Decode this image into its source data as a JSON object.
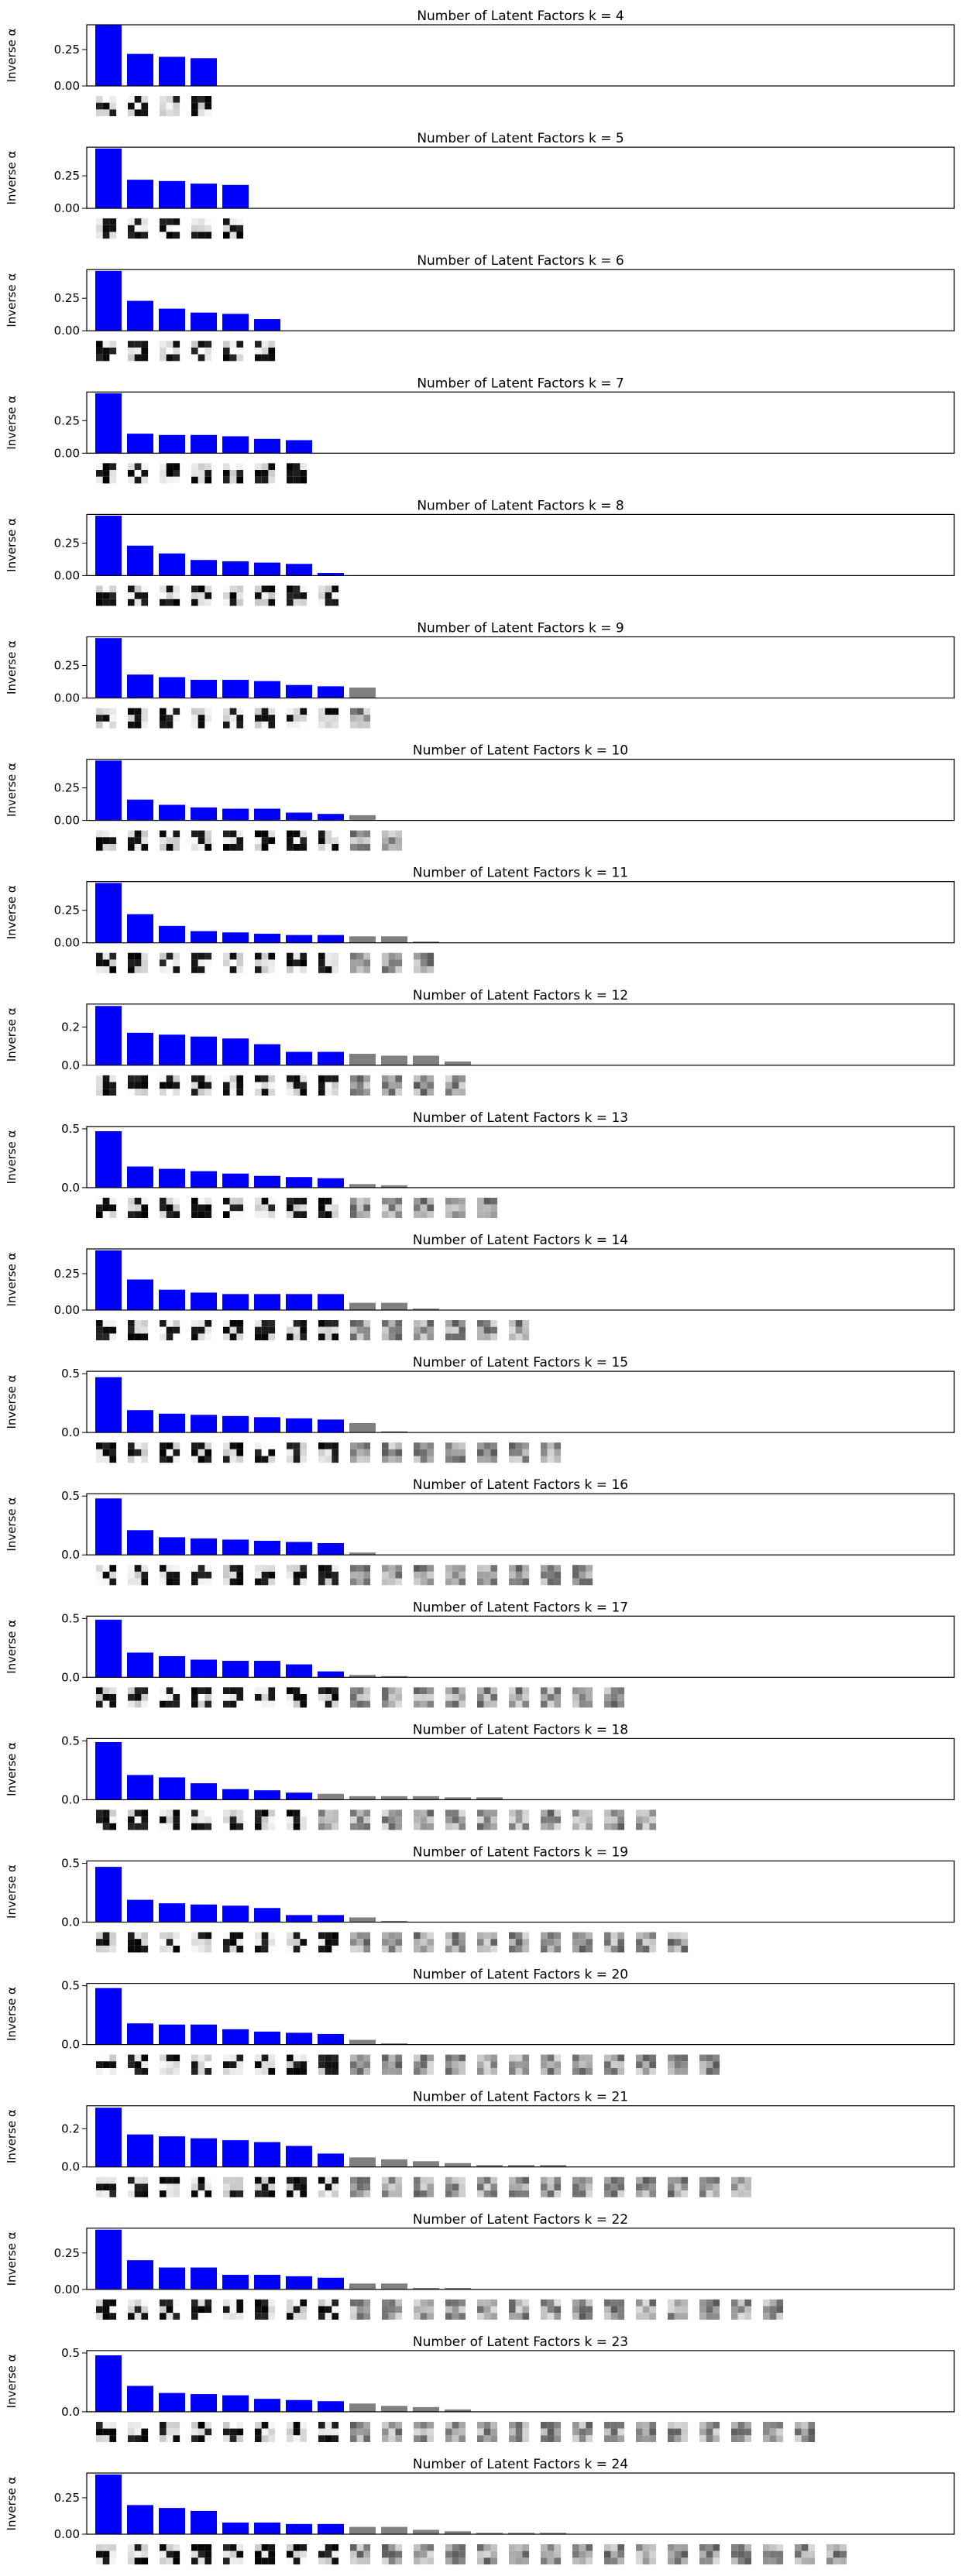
{
  "figure": {
    "ylabel": "Inverse α",
    "colors": {
      "active": "#0000ff",
      "pruned": "#808080",
      "axis": "#000000",
      "background": "#ffffff"
    }
  },
  "chart_data": [
    {
      "type": "bar",
      "title": "Number of Latent Factors k = 4",
      "k": 4,
      "ylabel": "Inverse α",
      "ylim": [
        0,
        0.42
      ],
      "yticks": [
        0.0,
        0.25
      ],
      "values": [
        0.42,
        0.22,
        0.2,
        0.19
      ],
      "active": [
        true,
        true,
        true,
        true
      ]
    },
    {
      "type": "bar",
      "title": "Number of Latent Factors k = 5",
      "k": 5,
      "ylabel": "Inverse α",
      "ylim": [
        0,
        0.47
      ],
      "yticks": [
        0.0,
        0.25
      ],
      "values": [
        0.46,
        0.22,
        0.21,
        0.19,
        0.18
      ],
      "active": [
        true,
        true,
        true,
        true,
        true
      ]
    },
    {
      "type": "bar",
      "title": "Number of Latent Factors k = 6",
      "k": 6,
      "ylabel": "Inverse α",
      "ylim": [
        0,
        0.47
      ],
      "yticks": [
        0.0,
        0.25
      ],
      "values": [
        0.46,
        0.23,
        0.17,
        0.14,
        0.13,
        0.09
      ],
      "active": [
        true,
        true,
        true,
        true,
        true,
        true
      ]
    },
    {
      "type": "bar",
      "title": "Number of Latent Factors k = 7",
      "k": 7,
      "ylabel": "Inverse α",
      "ylim": [
        0,
        0.47
      ],
      "yticks": [
        0.0,
        0.25
      ],
      "values": [
        0.46,
        0.15,
        0.14,
        0.14,
        0.13,
        0.11,
        0.1
      ],
      "active": [
        true,
        true,
        true,
        true,
        true,
        true,
        true
      ]
    },
    {
      "type": "bar",
      "title": "Number of Latent Factors k = 8",
      "k": 8,
      "ylabel": "Inverse α",
      "ylim": [
        0,
        0.47
      ],
      "yticks": [
        0.0,
        0.25
      ],
      "values": [
        0.46,
        0.23,
        0.17,
        0.12,
        0.11,
        0.1,
        0.09,
        0.02
      ],
      "active": [
        true,
        true,
        true,
        true,
        true,
        true,
        true,
        true
      ]
    },
    {
      "type": "bar",
      "title": "Number of Latent Factors k = 9",
      "k": 9,
      "ylabel": "Inverse α",
      "ylim": [
        0,
        0.47
      ],
      "yticks": [
        0.0,
        0.25
      ],
      "values": [
        0.46,
        0.18,
        0.16,
        0.14,
        0.14,
        0.13,
        0.1,
        0.09,
        0.08
      ],
      "active": [
        true,
        true,
        true,
        true,
        true,
        true,
        true,
        true,
        false
      ]
    },
    {
      "type": "bar",
      "title": "Number of Latent Factors k = 10",
      "k": 10,
      "ylabel": "Inverse α",
      "ylim": [
        0,
        0.47
      ],
      "yticks": [
        0.0,
        0.25
      ],
      "values": [
        0.46,
        0.16,
        0.12,
        0.1,
        0.09,
        0.09,
        0.06,
        0.05,
        0.04,
        0.0
      ],
      "active": [
        true,
        true,
        true,
        true,
        true,
        true,
        true,
        true,
        false,
        false
      ]
    },
    {
      "type": "bar",
      "title": "Number of Latent Factors k = 11",
      "k": 11,
      "ylabel": "Inverse α",
      "ylim": [
        0,
        0.47
      ],
      "yticks": [
        0.0,
        0.25
      ],
      "values": [
        0.46,
        0.22,
        0.13,
        0.09,
        0.08,
        0.07,
        0.06,
        0.06,
        0.05,
        0.05,
        0.01
      ],
      "active": [
        true,
        true,
        true,
        true,
        true,
        true,
        true,
        true,
        false,
        false,
        false
      ]
    },
    {
      "type": "bar",
      "title": "Number of Latent Factors k = 12",
      "k": 12,
      "ylabel": "Inverse α",
      "ylim": [
        0,
        0.32
      ],
      "yticks": [
        0.0,
        0.2
      ],
      "values": [
        0.31,
        0.17,
        0.16,
        0.15,
        0.14,
        0.11,
        0.07,
        0.07,
        0.06,
        0.05,
        0.05,
        0.02
      ],
      "active": [
        true,
        true,
        true,
        true,
        true,
        true,
        true,
        true,
        false,
        false,
        false,
        false
      ]
    },
    {
      "type": "bar",
      "title": "Number of Latent Factors k = 13",
      "k": 13,
      "ylabel": "Inverse α",
      "ylim": [
        0,
        0.52
      ],
      "yticks": [
        0.0,
        0.5
      ],
      "values": [
        0.48,
        0.18,
        0.16,
        0.14,
        0.12,
        0.1,
        0.09,
        0.08,
        0.03,
        0.02,
        0.0,
        0.0,
        0.0
      ],
      "active": [
        true,
        true,
        true,
        true,
        true,
        true,
        true,
        true,
        false,
        false,
        false,
        false,
        false
      ]
    },
    {
      "type": "bar",
      "title": "Number of Latent Factors k = 14",
      "k": 14,
      "ylabel": "Inverse α",
      "ylim": [
        0,
        0.42
      ],
      "yticks": [
        0.0,
        0.25
      ],
      "values": [
        0.41,
        0.21,
        0.14,
        0.12,
        0.11,
        0.11,
        0.11,
        0.11,
        0.05,
        0.05,
        0.01,
        0.0,
        0.0,
        0.0
      ],
      "active": [
        true,
        true,
        true,
        true,
        true,
        true,
        true,
        true,
        false,
        false,
        false,
        false,
        false,
        false
      ]
    },
    {
      "type": "bar",
      "title": "Number of Latent Factors k = 15",
      "k": 15,
      "ylabel": "Inverse α",
      "ylim": [
        0,
        0.52
      ],
      "yticks": [
        0.0,
        0.5
      ],
      "values": [
        0.47,
        0.19,
        0.16,
        0.15,
        0.14,
        0.13,
        0.12,
        0.11,
        0.08,
        0.01,
        0.0,
        0.0,
        0.0,
        0.0,
        0.0
      ],
      "active": [
        true,
        true,
        true,
        true,
        true,
        true,
        true,
        true,
        false,
        false,
        false,
        false,
        false,
        false,
        false
      ]
    },
    {
      "type": "bar",
      "title": "Number of Latent Factors k = 16",
      "k": 16,
      "ylabel": "Inverse α",
      "ylim": [
        0,
        0.52
      ],
      "yticks": [
        0.0,
        0.5
      ],
      "values": [
        0.48,
        0.21,
        0.15,
        0.14,
        0.13,
        0.12,
        0.11,
        0.1,
        0.02,
        0.0,
        0.0,
        0.0,
        0.0,
        0.0,
        0.0,
        0.0
      ],
      "active": [
        true,
        true,
        true,
        true,
        true,
        true,
        true,
        true,
        false,
        false,
        false,
        false,
        false,
        false,
        false,
        false
      ]
    },
    {
      "type": "bar",
      "title": "Number of Latent Factors k = 17",
      "k": 17,
      "ylabel": "Inverse α",
      "ylim": [
        0,
        0.52
      ],
      "yticks": [
        0.0,
        0.5
      ],
      "values": [
        0.49,
        0.21,
        0.18,
        0.15,
        0.14,
        0.14,
        0.11,
        0.05,
        0.02,
        0.01,
        0.0,
        0.0,
        0.0,
        0.0,
        0.0,
        0.0,
        0.0
      ],
      "active": [
        true,
        true,
        true,
        true,
        true,
        true,
        true,
        true,
        false,
        false,
        false,
        false,
        false,
        false,
        false,
        false,
        false
      ]
    },
    {
      "type": "bar",
      "title": "Number of Latent Factors k = 18",
      "k": 18,
      "ylabel": "Inverse α",
      "ylim": [
        0,
        0.52
      ],
      "yticks": [
        0.0,
        0.5
      ],
      "values": [
        0.49,
        0.21,
        0.19,
        0.14,
        0.09,
        0.08,
        0.06,
        0.05,
        0.03,
        0.03,
        0.03,
        0.02,
        0.02,
        0.0,
        0.0,
        0.0,
        0.0,
        0.0
      ],
      "active": [
        true,
        true,
        true,
        true,
        true,
        true,
        true,
        false,
        false,
        false,
        false,
        false,
        false,
        false,
        false,
        false,
        false,
        false
      ]
    },
    {
      "type": "bar",
      "title": "Number of Latent Factors k = 19",
      "k": 19,
      "ylabel": "Inverse α",
      "ylim": [
        0,
        0.52
      ],
      "yticks": [
        0.0,
        0.5
      ],
      "values": [
        0.47,
        0.19,
        0.16,
        0.15,
        0.14,
        0.12,
        0.06,
        0.06,
        0.04,
        0.01,
        0.0,
        0.0,
        0.0,
        0.0,
        0.0,
        0.0,
        0.0,
        0.0,
        0.0
      ],
      "active": [
        true,
        true,
        true,
        true,
        true,
        true,
        true,
        true,
        false,
        false,
        false,
        false,
        false,
        false,
        false,
        false,
        false,
        false,
        false
      ]
    },
    {
      "type": "bar",
      "title": "Number of Latent Factors k = 20",
      "k": 20,
      "ylabel": "Inverse α",
      "ylim": [
        0,
        0.52
      ],
      "yticks": [
        0.0,
        0.5
      ],
      "values": [
        0.48,
        0.18,
        0.17,
        0.17,
        0.13,
        0.11,
        0.1,
        0.09,
        0.04,
        0.01,
        0.0,
        0.0,
        0.0,
        0.0,
        0.0,
        0.0,
        0.0,
        0.0,
        0.0,
        0.0
      ],
      "active": [
        true,
        true,
        true,
        true,
        true,
        true,
        true,
        true,
        false,
        false,
        false,
        false,
        false,
        false,
        false,
        false,
        false,
        false,
        false,
        false
      ]
    },
    {
      "type": "bar",
      "title": "Number of Latent Factors k = 21",
      "k": 21,
      "ylabel": "Inverse α",
      "ylim": [
        0,
        0.32
      ],
      "yticks": [
        0.0,
        0.2
      ],
      "values": [
        0.31,
        0.17,
        0.16,
        0.15,
        0.14,
        0.13,
        0.11,
        0.07,
        0.05,
        0.04,
        0.03,
        0.02,
        0.01,
        0.01,
        0.01,
        0.0,
        0.0,
        0.0,
        0.0,
        0.0,
        0.0
      ],
      "active": [
        true,
        true,
        true,
        true,
        true,
        true,
        true,
        true,
        false,
        false,
        false,
        false,
        false,
        false,
        false,
        false,
        false,
        false,
        false,
        false,
        false
      ]
    },
    {
      "type": "bar",
      "title": "Number of Latent Factors k = 22",
      "k": 22,
      "ylabel": "Inverse α",
      "ylim": [
        0,
        0.42
      ],
      "yticks": [
        0.0,
        0.25
      ],
      "values": [
        0.41,
        0.2,
        0.15,
        0.15,
        0.1,
        0.1,
        0.09,
        0.08,
        0.04,
        0.04,
        0.01,
        0.01,
        0.0,
        0.0,
        0.0,
        0.0,
        0.0,
        0.0,
        0.0,
        0.0,
        0.0,
        0.0
      ],
      "active": [
        true,
        true,
        true,
        true,
        true,
        true,
        true,
        true,
        false,
        false,
        false,
        false,
        false,
        false,
        false,
        false,
        false,
        false,
        false,
        false,
        false,
        false
      ]
    },
    {
      "type": "bar",
      "title": "Number of Latent Factors k = 23",
      "k": 23,
      "ylabel": "Inverse α",
      "ylim": [
        0,
        0.52
      ],
      "yticks": [
        0.0,
        0.5
      ],
      "values": [
        0.48,
        0.22,
        0.16,
        0.15,
        0.14,
        0.11,
        0.1,
        0.09,
        0.07,
        0.05,
        0.04,
        0.02,
        0.0,
        0.0,
        0.0,
        0.0,
        0.0,
        0.0,
        0.0,
        0.0,
        0.0,
        0.0,
        0.0
      ],
      "active": [
        true,
        true,
        true,
        true,
        true,
        true,
        true,
        true,
        false,
        false,
        false,
        false,
        false,
        false,
        false,
        false,
        false,
        false,
        false,
        false,
        false,
        false,
        false
      ]
    },
    {
      "type": "bar",
      "title": "Number of Latent Factors k = 24",
      "k": 24,
      "ylabel": "Inverse α",
      "ylim": [
        0,
        0.42
      ],
      "yticks": [
        0.0,
        0.25
      ],
      "values": [
        0.41,
        0.2,
        0.18,
        0.16,
        0.08,
        0.08,
        0.07,
        0.07,
        0.05,
        0.05,
        0.03,
        0.02,
        0.01,
        0.01,
        0.01,
        0.0,
        0.0,
        0.0,
        0.0,
        0.0,
        0.0,
        0.0,
        0.0,
        0.0
      ],
      "active": [
        true,
        true,
        true,
        true,
        true,
        true,
        true,
        true,
        false,
        false,
        false,
        false,
        false,
        false,
        false,
        false,
        false,
        false,
        false,
        false,
        false,
        false,
        false,
        false
      ]
    }
  ]
}
